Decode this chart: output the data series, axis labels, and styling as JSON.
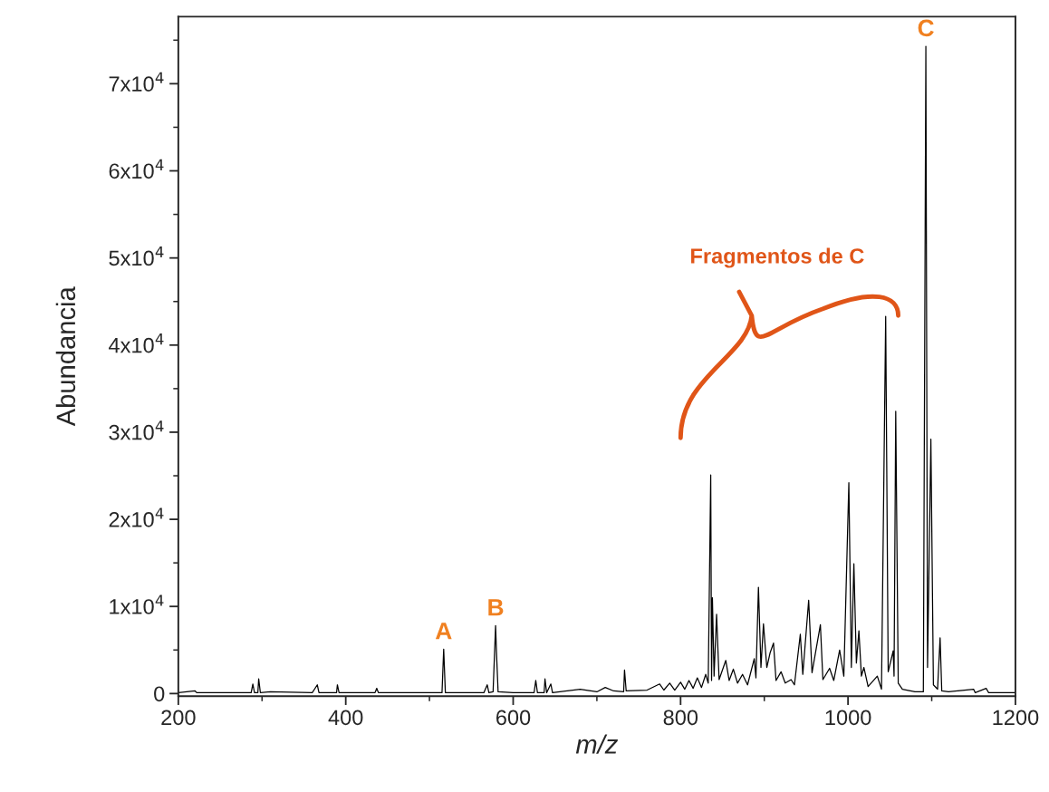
{
  "chart_data": {
    "type": "line",
    "xlabel": "m/z",
    "ylabel": "Abundancia",
    "xlim": [
      200,
      1200
    ],
    "xticks": [
      200,
      400,
      600,
      800,
      1000,
      1200
    ],
    "ylim": [
      -300,
      77700
    ],
    "yticks": [
      0,
      {
        "value": 10000,
        "label": "1x10$^{4}$"
      },
      {
        "value": 20000,
        "label": "2x10$^{4}$"
      },
      {
        "value": 30000,
        "label": "3x10$^{4}$"
      },
      {
        "value": 40000,
        "label": "4x10$^{4}$"
      },
      {
        "value": 50000,
        "label": "5x10$^{4}$"
      },
      {
        "value": 60000,
        "label": "6x10$^{4}$"
      },
      {
        "value": 70000,
        "label": "7x10$^{4}$"
      }
    ],
    "grid": false,
    "marker": "none",
    "line_style": "solid",
    "series": [
      {
        "color": "#000000",
        "x": [
          200,
          220,
          222,
          287,
          289,
          291,
          295,
          296,
          298,
          310,
          360,
          366,
          368,
          389,
          390,
          392,
          435,
          437,
          439,
          515,
          517,
          519,
          565,
          569,
          571,
          576,
          579,
          580,
          582,
          600,
          625,
          627,
          629,
          637,
          638,
          640,
          645,
          647,
          680,
          700,
          710,
          720,
          732,
          733,
          735,
          760,
          775,
          780,
          787,
          793,
          800,
          805,
          810,
          815,
          820,
          825,
          830,
          833,
          836,
          837,
          838,
          840,
          843,
          846,
          854,
          858,
          863,
          868,
          874,
          880,
          888,
          890,
          893,
          896,
          899,
          903,
          907,
          911,
          914,
          920,
          925,
          932,
          936,
          943,
          946,
          953,
          957,
          967,
          970,
          978,
          983,
          990,
          995,
          1001,
          1004,
          1007,
          1010,
          1013,
          1016,
          1019,
          1024,
          1035,
          1040,
          1045,
          1048,
          1054,
          1055,
          1057,
          1060,
          1065,
          1080,
          1090,
          1093,
          1095,
          1099,
          1102,
          1107,
          1110,
          1112,
          1120,
          1150,
          1152,
          1165,
          1168,
          1200
        ],
        "values": [
          100,
          300,
          100,
          100,
          1100,
          100,
          100,
          1700,
          100,
          200,
          100,
          1000,
          100,
          100,
          1000,
          100,
          100,
          600,
          100,
          100,
          5100,
          100,
          100,
          1000,
          100,
          200,
          7800,
          4900,
          200,
          100,
          100,
          1500,
          100,
          100,
          1700,
          100,
          1100,
          100,
          500,
          200,
          700,
          300,
          200,
          2700,
          300,
          400,
          1100,
          400,
          1200,
          400,
          1300,
          500,
          1500,
          600,
          1800,
          700,
          2200,
          1200,
          25100,
          1500,
          11000,
          2000,
          9100,
          1600,
          3800,
          1500,
          2800,
          1200,
          2200,
          1000,
          4000,
          1800,
          12200,
          3000,
          8000,
          3000,
          4700,
          5800,
          1500,
          2500,
          1200,
          1600,
          1000,
          6800,
          2200,
          10700,
          2400,
          7900,
          1600,
          2900,
          1500,
          5000,
          2000,
          24200,
          3000,
          14900,
          3500,
          7200,
          2000,
          3000,
          800,
          2000,
          500,
          43300,
          2500,
          4900,
          2000,
          32400,
          1200,
          500,
          200,
          200,
          74300,
          3000,
          29200,
          1000,
          500,
          6400,
          300,
          200,
          500,
          100,
          600,
          100,
          100
        ]
      }
    ],
    "annotations": [
      {
        "text": "A",
        "x": 517,
        "y": 5100
      },
      {
        "text": "B",
        "x": 579,
        "y": 7800
      },
      {
        "text": "C",
        "x": 1093,
        "y": 74300
      },
      "Fragmentos de C"
    ]
  }
}
